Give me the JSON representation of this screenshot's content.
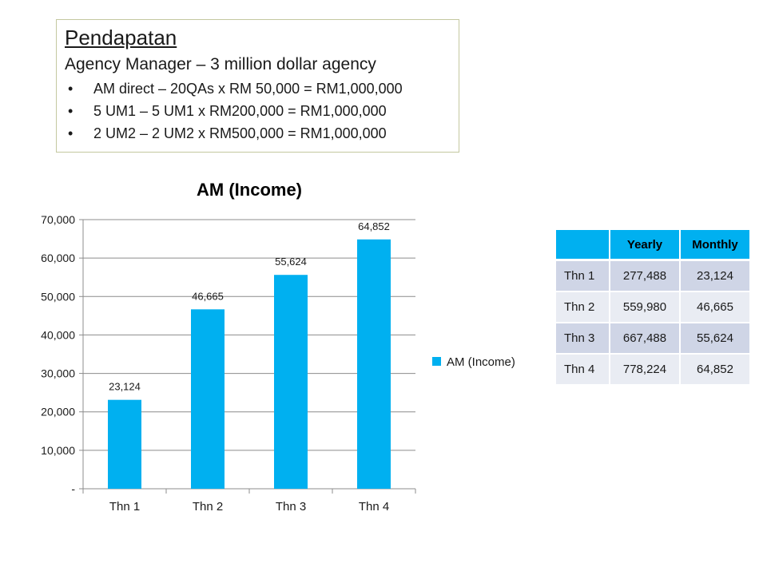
{
  "textbox": {
    "title": "Pendapatan",
    "subtitle": "Agency Manager – 3 million dollar agency",
    "bullets": [
      "AM direct – 20QAs x RM 50,000 = RM1,000,000",
      "5 UM1 – 5 UM1 x RM200,000 = RM1,000,000",
      "2 UM2 – 2 UM2 x RM500,000 = RM1,000,000"
    ],
    "bullet_char": "•"
  },
  "chart_data": {
    "type": "bar",
    "title": "AM (Income)",
    "categories": [
      "Thn 1",
      "Thn 2",
      "Thn 3",
      "Thn 4"
    ],
    "series": [
      {
        "name": "AM (Income)",
        "values": [
          23124,
          46665,
          55624,
          64852
        ],
        "color": "#00b0f0"
      }
    ],
    "data_labels": [
      "23,124",
      "46,665",
      "55,624",
      "64,852"
    ],
    "y_ticks": [
      0,
      10000,
      20000,
      30000,
      40000,
      50000,
      60000,
      70000
    ],
    "y_tick_labels": [
      "-",
      "10,000",
      "20,000",
      "30,000",
      "40,000",
      "50,000",
      "60,000",
      "70,000"
    ],
    "ylim": [
      0,
      70000
    ],
    "xlabel": "",
    "ylabel": "",
    "grid": true,
    "legend_position": "right"
  },
  "table": {
    "headers": [
      "",
      "Yearly",
      "Monthly"
    ],
    "rows": [
      [
        "Thn 1",
        "277,488",
        "23,124"
      ],
      [
        "Thn 2",
        "559,980",
        "46,665"
      ],
      [
        "Thn 3",
        "667,488",
        "55,624"
      ],
      [
        "Thn 4",
        "778,224",
        "64,852"
      ]
    ],
    "header_color": "#00b0f0"
  }
}
